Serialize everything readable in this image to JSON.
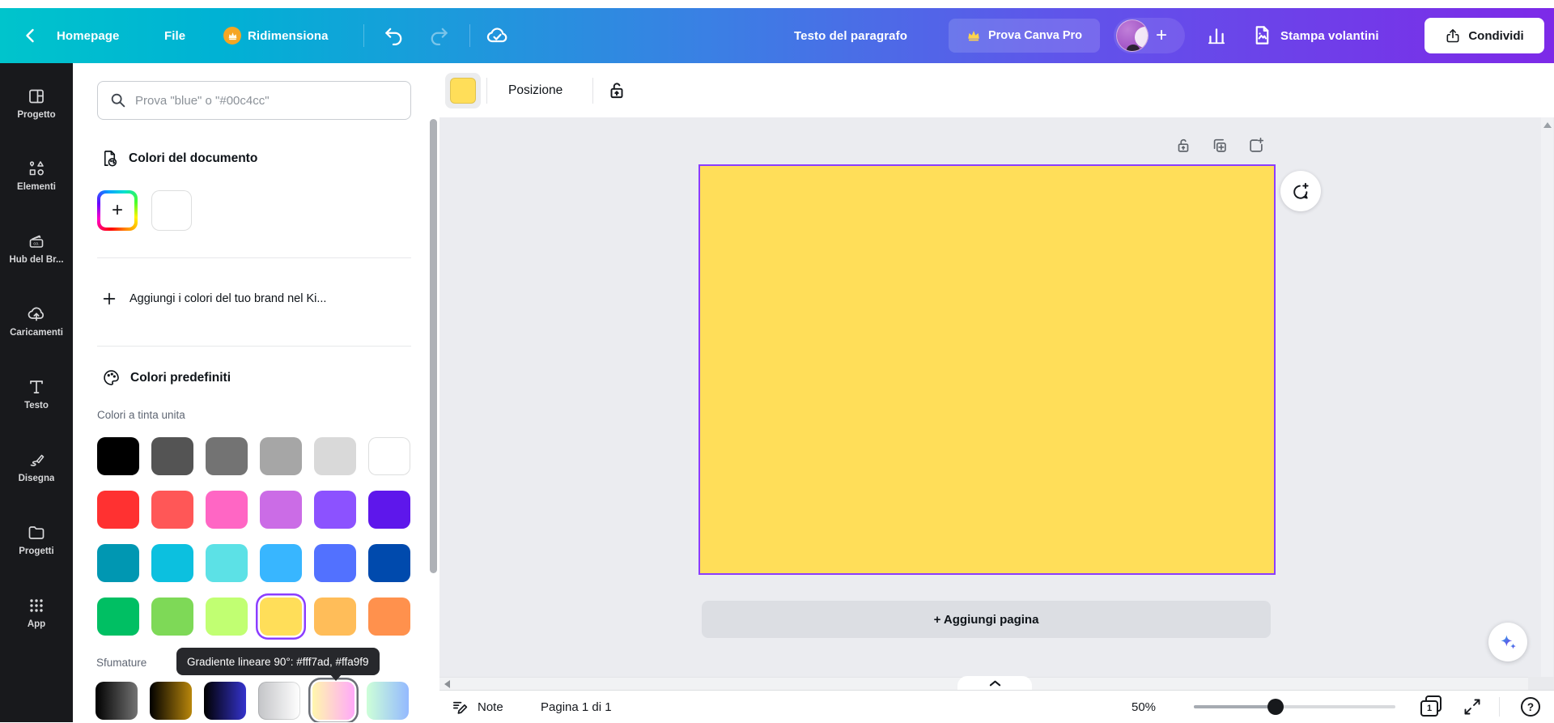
{
  "topbar": {
    "home_label": "Homepage",
    "file_label": "File",
    "resize_label": "Ridimensiona",
    "doc_title": "Testo del paragrafo",
    "pro_label": "Prova Canva Pro",
    "print_label": "Stampa volantini",
    "share_label": "Condividi"
  },
  "sidebar": {
    "items": [
      {
        "label": "Progetto"
      },
      {
        "label": "Elementi"
      },
      {
        "label": "Hub del Br..."
      },
      {
        "label": "Caricamenti"
      },
      {
        "label": "Testo"
      },
      {
        "label": "Disegna"
      },
      {
        "label": "Progetti"
      },
      {
        "label": "App"
      }
    ]
  },
  "panel": {
    "search_placeholder": "Prova \"blue\" o \"#00c4cc\"",
    "document_colors_title": "Colori del documento",
    "add_color_label": "+",
    "add_brand_colors_label": "Aggiungi i colori del tuo brand nel Ki...",
    "preset_colors_title": "Colori predefiniti",
    "solid_colors_label": "Colori a tinta unita",
    "gradients_label": "Sfumature",
    "tooltip": "Gradiente lineare 90°: #fff7ad, #ffa9f9",
    "document_colors": [
      {
        "c": "#ffffff",
        "light": true,
        "name": "doc-color-white"
      }
    ],
    "solid_colors": [
      {
        "c": "#000000"
      },
      {
        "c": "#545454"
      },
      {
        "c": "#737373"
      },
      {
        "c": "#a6a6a6"
      },
      {
        "c": "#d9d9d9"
      },
      {
        "c": "#ffffff",
        "light": true
      },
      {
        "c": "#ff3131"
      },
      {
        "c": "#ff5757"
      },
      {
        "c": "#ff66c4"
      },
      {
        "c": "#cb6ce6"
      },
      {
        "c": "#8c52ff"
      },
      {
        "c": "#5e17eb"
      },
      {
        "c": "#0097b2"
      },
      {
        "c": "#0cc0df"
      },
      {
        "c": "#5ce1e6"
      },
      {
        "c": "#38b6ff"
      },
      {
        "c": "#5271ff"
      },
      {
        "c": "#004aad"
      },
      {
        "c": "#00bf63"
      },
      {
        "c": "#7ed957"
      },
      {
        "c": "#c1ff72"
      },
      {
        "c": "#ffde59",
        "sel": "#8b3dff",
        "name": "color-swatch-selected"
      },
      {
        "c": "#ffbd59"
      },
      {
        "c": "#ff914d"
      }
    ],
    "gradient_colors": [
      {
        "g": [
          "#000000",
          "#737373"
        ]
      },
      {
        "g": [
          "#000000",
          "#b8860b"
        ]
      },
      {
        "g": [
          "#000000",
          "#3533cd"
        ]
      },
      {
        "g": [
          "#c3c4c7",
          "#ffffff"
        ],
        "light": true
      },
      {
        "g": [
          "#fff7ad",
          "#ffa9f9"
        ],
        "sel": "#6b6f76",
        "name": "gradient-swatch-selected"
      },
      {
        "g": [
          "#cdffd8",
          "#94b9ff"
        ]
      }
    ]
  },
  "canvas": {
    "position_label": "Posizione",
    "add_page_label": "+ Aggiungi pagina",
    "page_fill": "#ffde59",
    "selection_color": "#8b3dff"
  },
  "statusbar": {
    "notes_label": "Note",
    "page_indicator": "Pagina 1 di 1",
    "zoom_level": "50%",
    "page_count": "1"
  }
}
